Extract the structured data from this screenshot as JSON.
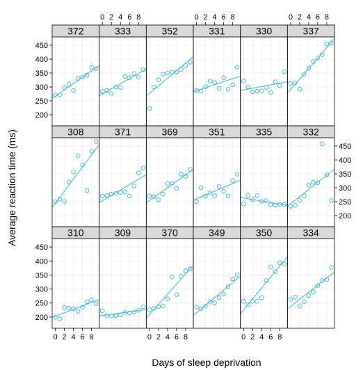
{
  "chart_data": {
    "type": "scatter",
    "layout": "trellis",
    "xlabel": "Days of sleep deprivation",
    "ylabel": "Average reaction time (ms)",
    "xlim": [
      -0.7,
      9.7
    ],
    "ylim": [
      160,
      480
    ],
    "xticks": [
      0,
      2,
      4,
      6,
      8
    ],
    "yticks": [
      200,
      250,
      300,
      350,
      400,
      450
    ],
    "grid": true,
    "fit_line": "linear",
    "color": "#3fb4d8",
    "x": [
      0,
      1,
      2,
      3,
      4,
      5,
      6,
      7,
      8,
      9
    ],
    "panels": [
      {
        "label": "372",
        "values": [
          270,
          272,
          298,
          310,
          287,
          330,
          335,
          342,
          370,
          365
        ]
      },
      {
        "label": "333",
        "values": [
          284,
          288,
          276,
          300,
          298,
          338,
          333,
          348,
          335,
          362
        ]
      },
      {
        "label": "352",
        "values": [
          222,
          300,
          326,
          346,
          350,
          353,
          354,
          362,
          377,
          389
        ]
      },
      {
        "label": "331",
        "values": [
          287,
          285,
          301,
          320,
          316,
          295,
          333,
          292,
          308,
          371
        ]
      },
      {
        "label": "330",
        "values": [
          321,
          300,
          283,
          285,
          286,
          298,
          280,
          318,
          305,
          354
        ]
      },
      {
        "label": "337",
        "values": [
          312,
          314,
          292,
          346,
          367,
          391,
          404,
          416,
          455,
          458
        ]
      },
      {
        "label": "308",
        "values": [
          250,
          259,
          251,
          321,
          357,
          415,
          382,
          290,
          431,
          466
        ]
      },
      {
        "label": "371",
        "values": [
          270,
          272,
          277,
          280,
          283,
          285,
          270,
          307,
          354,
          371
        ]
      },
      {
        "label": "369",
        "values": [
          271,
          268,
          257,
          277,
          315,
          317,
          298,
          349,
          341,
          366
        ]
      },
      {
        "label": "351",
        "values": [
          250,
          300,
          270,
          281,
          271,
          305,
          287,
          271,
          326,
          349
        ]
      },
      {
        "label": "335",
        "values": [
          242,
          273,
          258,
          272,
          251,
          254,
          240,
          238,
          240,
          240
        ]
      },
      {
        "label": "332",
        "values": [
          234,
          237,
          255,
          271,
          310,
          320,
          318,
          458,
          347,
          254
        ]
      },
      {
        "label": "310",
        "values": [
          199,
          194,
          234,
          232,
          229,
          220,
          235,
          255,
          261,
          247
        ]
      },
      {
        "label": "309",
        "values": [
          223,
          205,
          203,
          205,
          208,
          216,
          214,
          218,
          224,
          237
        ]
      },
      {
        "label": "370",
        "values": [
          226,
          231,
          237,
          240,
          265,
          343,
          280,
          345,
          365,
          372
        ]
      },
      {
        "label": "349",
        "values": [
          236,
          230,
          239,
          255,
          251,
          270,
          282,
          308,
          336,
          351
        ]
      },
      {
        "label": "350",
        "values": [
          256,
          243,
          256,
          256,
          269,
          330,
          379,
          362,
          394,
          389
        ]
      },
      {
        "label": "334",
        "values": [
          263,
          271,
          240,
          255,
          277,
          290,
          312,
          330,
          334,
          377
        ]
      }
    ]
  }
}
